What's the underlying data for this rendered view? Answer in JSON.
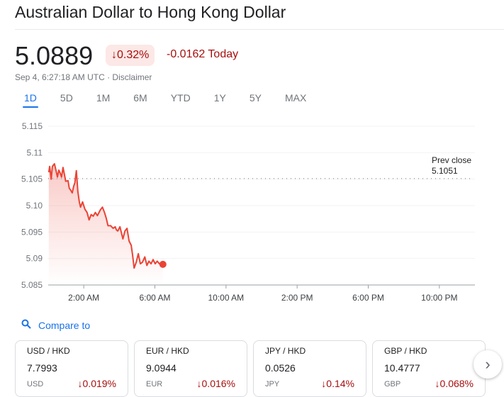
{
  "title": "Australian Dollar to Hong Kong Dollar",
  "price": "5.0889",
  "change_pct": "0.32%",
  "change_abs": "-0.0162 Today",
  "timestamp": "Sep 4, 6:27:18 AM UTC · ",
  "disclaimer": "Disclaimer",
  "tabs": [
    "1D",
    "5D",
    "1M",
    "6M",
    "YTD",
    "1Y",
    "5Y",
    "MAX"
  ],
  "active_tab": "1D",
  "compare_label": "Compare to",
  "cards": [
    {
      "pair": "USD / HKD",
      "value": "7.7993",
      "code": "USD",
      "change": "0.019%"
    },
    {
      "pair": "EUR / HKD",
      "value": "9.0944",
      "code": "EUR",
      "change": "0.016%"
    },
    {
      "pair": "JPY / HKD",
      "value": "0.0526",
      "code": "JPY",
      "change": "0.14%"
    },
    {
      "pair": "GBP / HKD",
      "value": "10.4777",
      "code": "GBP",
      "change": "0.068%"
    }
  ],
  "colors": {
    "down": "#a50e0e",
    "line": "#ea4335",
    "accent": "#1a73e8"
  },
  "chart_data": {
    "type": "line",
    "ylim": [
      5.085,
      5.115
    ],
    "yticks": [
      "5.115",
      "5.11",
      "5.105",
      "5.10",
      "5.095",
      "5.09",
      "5.085"
    ],
    "xlim": [
      "0:00",
      "24:00"
    ],
    "xticks": [
      {
        "t": "2:00",
        "label": "2:00 AM"
      },
      {
        "t": "6:00",
        "label": "6:00 AM"
      },
      {
        "t": "10:00",
        "label": "10:00 AM"
      },
      {
        "t": "14:00",
        "label": "2:00 PM"
      },
      {
        "t": "18:00",
        "label": "6:00 PM"
      },
      {
        "t": "22:00",
        "label": "10:00 PM"
      }
    ],
    "prev_close_label": "Prev close",
    "prev_close": "5.1051",
    "points": [
      [
        "0:02",
        5.1063
      ],
      [
        "0:05",
        5.1074
      ],
      [
        "0:10",
        5.105
      ],
      [
        "0:14",
        5.1074
      ],
      [
        "0:21",
        5.1079
      ],
      [
        "0:26",
        5.1067
      ],
      [
        "0:31",
        5.1054
      ],
      [
        "0:36",
        5.1067
      ],
      [
        "0:40",
        5.1062
      ],
      [
        "0:45",
        5.1054
      ],
      [
        "0:50",
        5.1072
      ],
      [
        "0:55",
        5.1058
      ],
      [
        "0:59",
        5.1046
      ],
      [
        "1:07",
        5.1047
      ],
      [
        "1:11",
        5.1033
      ],
      [
        "1:16",
        5.1029
      ],
      [
        "1:21",
        5.1024
      ],
      [
        "1:26",
        5.1037
      ],
      [
        "1:30",
        5.1043
      ],
      [
        "1:35",
        5.1066
      ],
      [
        "1:40",
        5.1027
      ],
      [
        "1:45",
        5.1007
      ],
      [
        "1:49",
        5.0997
      ],
      [
        "1:56",
        5.1007
      ],
      [
        "2:04",
        5.0993
      ],
      [
        "2:11",
        5.0987
      ],
      [
        "2:18",
        5.0973
      ],
      [
        "2:25",
        5.0983
      ],
      [
        "2:32",
        5.098
      ],
      [
        "2:39",
        5.0987
      ],
      [
        "2:46",
        5.0981
      ],
      [
        "2:56",
        5.0992
      ],
      [
        "3:03",
        5.0997
      ],
      [
        "3:10",
        5.0987
      ],
      [
        "3:15",
        5.0978
      ],
      [
        "3:22",
        5.0962
      ],
      [
        "3:31",
        5.0962
      ],
      [
        "3:39",
        5.0957
      ],
      [
        "3:46",
        5.096
      ],
      [
        "3:50",
        5.0954
      ],
      [
        "3:55",
        5.0952
      ],
      [
        "4:02",
        5.096
      ],
      [
        "4:12",
        5.0937
      ],
      [
        "4:19",
        5.0952
      ],
      [
        "4:26",
        5.0957
      ],
      [
        "4:33",
        5.0933
      ],
      [
        "4:40",
        5.0925
      ],
      [
        "4:45",
        5.0906
      ],
      [
        "4:50",
        5.0882
      ],
      [
        "4:57",
        5.0893
      ],
      [
        "5:04",
        5.0909
      ],
      [
        "5:11",
        5.089
      ],
      [
        "5:18",
        5.0893
      ],
      [
        "5:26",
        5.0903
      ],
      [
        "5:33",
        5.0887
      ],
      [
        "5:40",
        5.0895
      ],
      [
        "5:47",
        5.089
      ],
      [
        "5:54",
        5.0898
      ],
      [
        "6:01",
        5.089
      ],
      [
        "6:08",
        5.0895
      ],
      [
        "6:15",
        5.089
      ],
      [
        "6:27",
        5.0889
      ]
    ]
  }
}
